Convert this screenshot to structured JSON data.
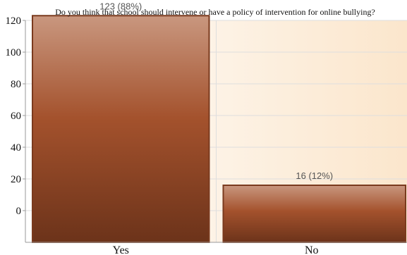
{
  "chart_data": {
    "type": "bar",
    "title": "Do you think that school should intervene or have a policy of intervention for online bullying?",
    "categories": [
      "Yes",
      "No"
    ],
    "values": [
      123,
      16
    ],
    "data_labels": [
      "123 (88%)",
      "16 (12%)"
    ],
    "y_ticks": [
      0,
      20,
      40,
      60,
      80,
      100,
      120
    ],
    "ylim": [
      -20,
      120
    ],
    "xlabel": "",
    "ylabel": "",
    "grid": true,
    "legend": "none"
  },
  "colors": {
    "bar_top": "#c9977f",
    "bar_mid": "#a4522d",
    "bar_bottom": "#6c331a",
    "bar_border": "#7a3a1e",
    "plot_bg_left": "#ffffff",
    "plot_bg_right": "#fbe6cc",
    "grid": "#dedede",
    "axis": "#9a9a9a",
    "data_label": "#555555"
  }
}
